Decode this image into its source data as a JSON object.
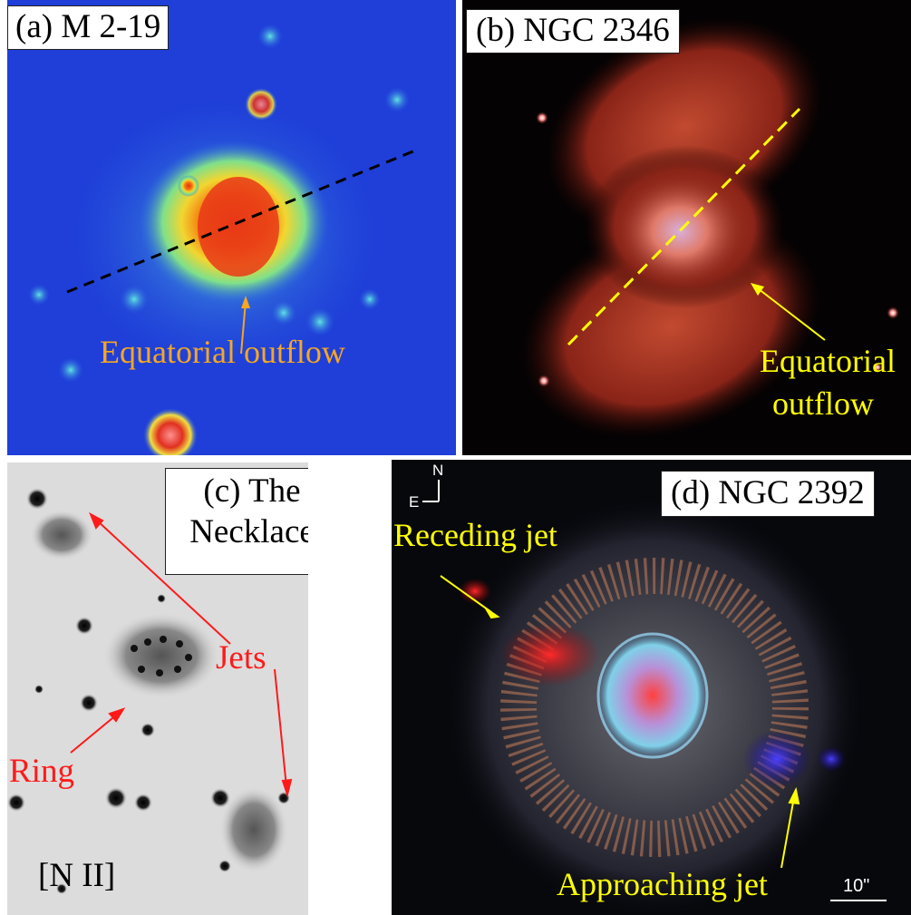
{
  "panels": {
    "a": {
      "title": "(a) M 2-19",
      "annotation": "Equatorial outflow",
      "annotation_color": "#f5a623"
    },
    "b": {
      "title": "(b) NGC 2346",
      "annotation_line1": "Equatorial",
      "annotation_line2": "outflow",
      "annotation_color": "#ffff00"
    },
    "c": {
      "title_line1": "(c) The",
      "title_line2": "Necklace",
      "jets_label": "Jets",
      "ring_label": "Ring",
      "filter_label": "[N II]",
      "annotation_color": "#ff1a1a"
    },
    "d": {
      "title": "(d) NGC 2392",
      "receding_label": "Receding jet",
      "approaching_label": "Approaching jet",
      "compass_n": "N",
      "compass_e": "E",
      "scale_label": "10\"",
      "annotation_color": "#ffff00"
    }
  }
}
